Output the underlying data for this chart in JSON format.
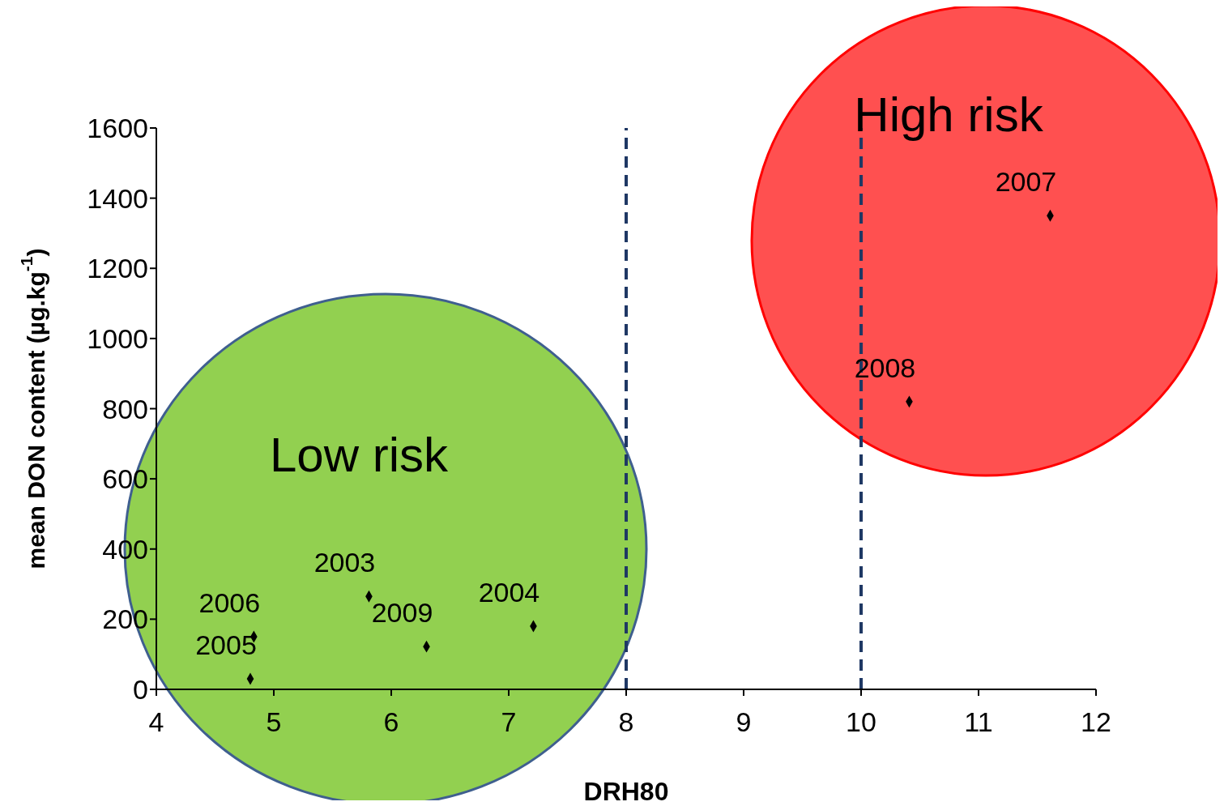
{
  "chart_data": {
    "type": "scatter",
    "xlabel": "DRH80",
    "ylabel": "mean DON content (µg.kg$^{-1}$)",
    "x": [
      5.81,
      7.21,
      4.8,
      4.83,
      11.61,
      10.41,
      6.3
    ],
    "series": [
      {
        "color": "#000000",
        "values": [
          265,
          180,
          30,
          150,
          1350,
          820,
          122
        ]
      }
    ],
    "marker": "diamond",
    "xlim": [
      4,
      12
    ],
    "xticks": [
      4,
      5,
      6,
      7,
      8,
      9,
      10,
      11,
      12
    ],
    "ylim": [
      0,
      1600
    ],
    "yticks": [
      0,
      200,
      400,
      600,
      800,
      1000,
      1200,
      1400,
      1600
    ],
    "ref_lines": [
      {
        "axis": "x",
        "value": 8,
        "color": "#1f3864",
        "line_style": "dashed"
      },
      {
        "axis": "x",
        "value": 10,
        "color": "#1f3864",
        "line_style": "dashed"
      }
    ],
    "annotations": [
      "Low risk",
      "High risk",
      {
        "text": "2003",
        "x": 5.81,
        "y": 265
      },
      {
        "text": "2004",
        "x": 7.21,
        "y": 180
      },
      {
        "text": "2005",
        "x": 4.8,
        "y": 30
      },
      {
        "text": "2006",
        "x": 4.83,
        "y": 150
      },
      {
        "text": "2007",
        "x": 11.61,
        "y": 1350
      },
      {
        "text": "2008",
        "x": 10.41,
        "y": 820
      },
      {
        "text": "2009",
        "x": 6.3,
        "y": 122
      }
    ],
    "grid": false
  }
}
